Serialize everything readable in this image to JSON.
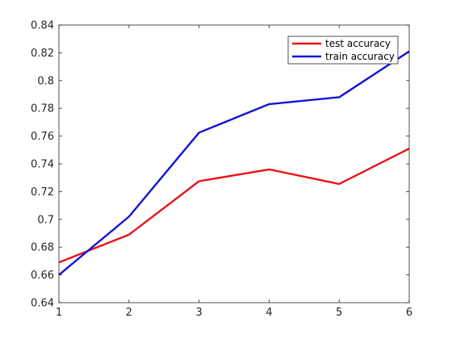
{
  "chart_data": {
    "type": "line",
    "title": "",
    "xlabel": "",
    "ylabel": "",
    "x": [
      1,
      2,
      3,
      4,
      5,
      6
    ],
    "xlim": [
      1,
      6
    ],
    "ylim": [
      0.64,
      0.84
    ],
    "xticks": [
      1,
      2,
      3,
      4,
      5,
      6
    ],
    "xtick_labels": [
      "1",
      "2",
      "3",
      "4",
      "5",
      "6"
    ],
    "yticks": [
      0.64,
      0.66,
      0.68,
      0.7,
      0.72,
      0.74,
      0.76,
      0.78,
      0.8,
      0.82,
      0.84
    ],
    "ytick_labels": [
      "0.64",
      "0.66",
      "0.68",
      "0.7",
      "0.72",
      "0.74",
      "0.76",
      "0.78",
      "0.8",
      "0.82",
      "0.84"
    ],
    "grid": false,
    "legend_position": "top-right",
    "series": [
      {
        "name": "test accuracy",
        "color": "#e8141b",
        "values": [
          0.669,
          0.689,
          0.7275,
          0.736,
          0.7255,
          0.751
        ]
      },
      {
        "name": "train accuracy",
        "color": "#1414d6",
        "values": [
          0.66,
          0.702,
          0.7625,
          0.783,
          0.788,
          0.821
        ]
      }
    ]
  }
}
